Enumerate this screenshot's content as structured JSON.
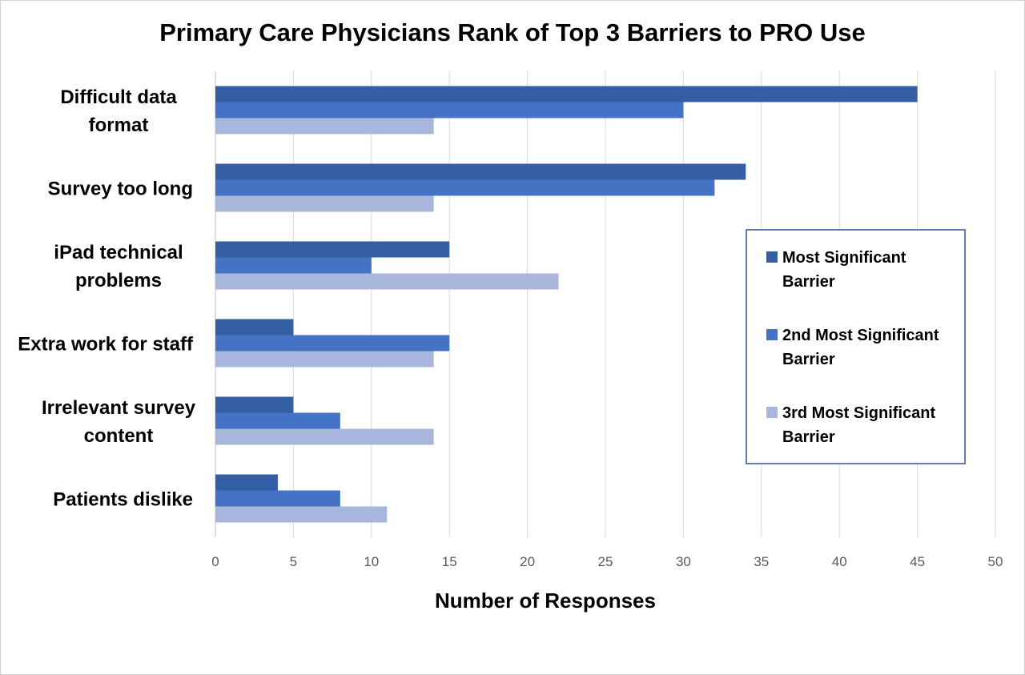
{
  "chart_data": {
    "type": "bar",
    "orientation": "horizontal",
    "title": "Primary Care Physicians Rank of Top 3 Barriers to PRO Use",
    "xlabel": "Number of Responses",
    "ylabel": "",
    "xlim": [
      0,
      50
    ],
    "xticks": [
      0,
      5,
      10,
      15,
      20,
      25,
      30,
      35,
      40,
      45,
      50
    ],
    "grid": true,
    "legend_position": "right",
    "categories": [
      [
        "Difficult data",
        "format"
      ],
      [
        "Survey too long"
      ],
      [
        "iPad technical",
        "problems"
      ],
      [
        "Extra work for staff"
      ],
      [
        "Irrelevant survey",
        "content"
      ],
      [
        "Patients dislike"
      ]
    ],
    "series": [
      {
        "name": [
          "Most Significant",
          "Barrier"
        ],
        "color": "#345ea4",
        "values": [
          45,
          34,
          15,
          5,
          5,
          4
        ]
      },
      {
        "name": [
          "2nd Most Significant",
          "Barrier"
        ],
        "color": "#4472c4",
        "values": [
          30,
          32,
          10,
          15,
          8,
          8
        ]
      },
      {
        "name": [
          "3rd Most Significant",
          "Barrier"
        ],
        "color": "#a9b6dc",
        "values": [
          14,
          14,
          22,
          14,
          14,
          11
        ]
      }
    ]
  }
}
